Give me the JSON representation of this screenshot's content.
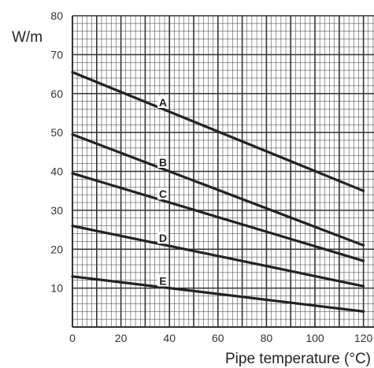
{
  "chart_data": {
    "type": "line",
    "title": "",
    "xlabel": "Pipe temperature (°C)",
    "ylabel": "W/m",
    "xlim": [
      0,
      125
    ],
    "ylim": [
      0,
      80
    ],
    "x_ticks": [
      "0",
      "20",
      "40",
      "60",
      "80",
      "100",
      "120"
    ],
    "y_ticks": [
      "10",
      "20",
      "30",
      "40",
      "50",
      "60",
      "70",
      "80"
    ],
    "grid": true,
    "series": [
      {
        "name": "A",
        "x": [
          0,
          120
        ],
        "y": [
          65.5,
          35
        ]
      },
      {
        "name": "B",
        "x": [
          0,
          120
        ],
        "y": [
          49.5,
          21
        ]
      },
      {
        "name": "C",
        "x": [
          0,
          120
        ],
        "y": [
          39.5,
          17
        ]
      },
      {
        "name": "D",
        "x": [
          0,
          120
        ],
        "y": [
          26,
          10.5
        ]
      },
      {
        "name": "E",
        "x": [
          0,
          120
        ],
        "y": [
          13,
          4
        ]
      }
    ],
    "series_label_x": 37
  },
  "colors": {
    "grid": "#333333",
    "series": "#222222",
    "background": "#ffffff"
  }
}
